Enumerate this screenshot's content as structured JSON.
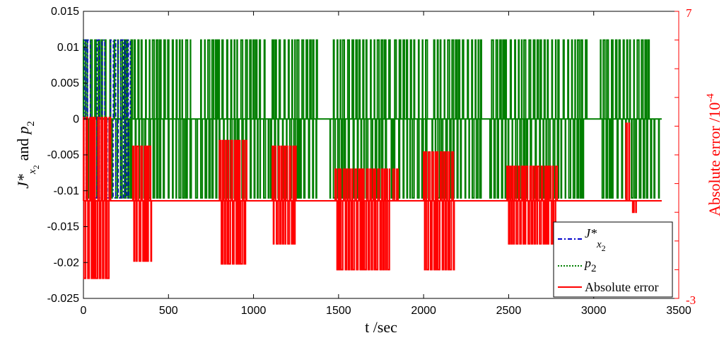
{
  "chart_data": {
    "type": "line",
    "xlabel": "t /sec",
    "ylabel_left": {
      "base": "J*",
      "sub": "x",
      "subsub": "2",
      "middle": "and",
      "p": "p",
      "psub": "2"
    },
    "ylabel_right": {
      "text": "Absolute error /10",
      "exp": "-4"
    },
    "xlim": [
      0,
      3500
    ],
    "ylim_left": [
      -0.025,
      0.015
    ],
    "ylim_right": [
      -3,
      7
    ],
    "x_ticks": [
      "0",
      "500",
      "1000",
      "1500",
      "2000",
      "2500",
      "3000",
      "3500"
    ],
    "y_ticks_left": [
      "0.015",
      "0.01",
      "0.005",
      "0",
      "-0.005",
      "-0.01",
      "-0.015",
      "-0.02",
      "-0.025"
    ],
    "y_ticks_right": [
      "7",
      "-3"
    ],
    "grid": false,
    "legend_position": "bottom-right",
    "legend": [
      {
        "label": "J*",
        "sub": "x",
        "subsub": "2",
        "style": "dash-dot",
        "color": "#0000cc"
      },
      {
        "label": "p",
        "sub": "2",
        "style": "dotted",
        "color": "#007f00"
      },
      {
        "label": "Absolute error",
        "style": "solid",
        "color": "#ff0000"
      }
    ],
    "series": [
      {
        "name": "J*x2",
        "color": "#0000cc",
        "values": [
          0,
          0.011,
          -0.011,
          0.011,
          0,
          -0.011,
          0.011,
          -0.011,
          0.011,
          0,
          -0.011,
          0.011,
          -0.011,
          0.011,
          -0.011,
          0.011,
          -0.011,
          0.011,
          -0.011,
          0.011,
          0
        ],
        "x": [
          0,
          5,
          15,
          25,
          40,
          50,
          80,
          95,
          110,
          125,
          140,
          160,
          175,
          190,
          205,
          220,
          235,
          245,
          255,
          265,
          275
        ]
      },
      {
        "name": "p2",
        "color": "#007f00",
        "x_start": 0,
        "x_end": 3400,
        "levels": [
          0.011,
          0,
          -0.011
        ],
        "segments": [
          [
            0,
            260,
            0.011
          ],
          [
            20,
            280,
            -0.011
          ],
          [
            280,
            630,
            0.011
          ],
          [
            280,
            640,
            -0.011
          ],
          [
            690,
            1080,
            0.011
          ],
          [
            660,
            1090,
            -0.011
          ],
          [
            1110,
            1380,
            0.011
          ],
          [
            1100,
            1380,
            -0.011
          ],
          [
            1470,
            1810,
            0.011
          ],
          [
            1450,
            1800,
            -0.011
          ],
          [
            1830,
            2030,
            0.011
          ],
          [
            1810,
            2030,
            -0.011
          ],
          [
            2060,
            2340,
            0.011
          ],
          [
            2050,
            2340,
            -0.011
          ],
          [
            2400,
            2790,
            0.011
          ],
          [
            2390,
            2790,
            -0.011
          ],
          [
            2790,
            2960,
            0.011
          ],
          [
            2790,
            2960,
            -0.011
          ],
          [
            3040,
            3340,
            0.011
          ],
          [
            3050,
            3400,
            -0.011
          ]
        ]
      },
      {
        "name": "Absolute error",
        "color": "#ff0000",
        "baseline": 0.4,
        "segments": [
          [
            0,
            160,
            3.3,
            -2.3
          ],
          [
            290,
            400,
            2.3,
            -1.7
          ],
          [
            800,
            960,
            2.5,
            -1.8
          ],
          [
            1110,
            1250,
            2.3,
            -1.1
          ],
          [
            1480,
            1800,
            1.5,
            -2.0
          ],
          [
            1820,
            1850,
            1.5,
            0.4
          ],
          [
            2000,
            2180,
            2.1,
            -2.0
          ],
          [
            2490,
            2760,
            1.6,
            -1.1
          ],
          [
            2760,
            2790,
            1.6,
            -0.5
          ],
          [
            3190,
            3210,
            3.1,
            0.4
          ],
          [
            3220,
            3250,
            0.4,
            0.0
          ]
        ]
      }
    ]
  }
}
